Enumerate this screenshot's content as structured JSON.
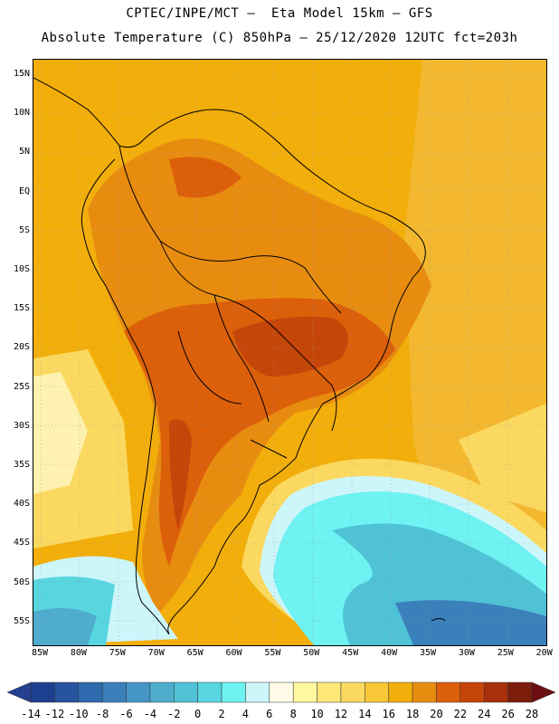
{
  "header": {
    "line1": "CPTEC/INPE/MCT –  Eta Model 15km – GFS",
    "line2": "Absolute Temperature (C) 850hPa – 25/12/2020 12UTC fct=203h"
  },
  "axes": {
    "lat_labels": [
      "15N",
      "10N",
      "5N",
      "EQ",
      "5S",
      "10S",
      "15S",
      "20S",
      "25S",
      "30S",
      "35S",
      "40S",
      "45S",
      "50S",
      "55S"
    ],
    "lon_labels": [
      "85W",
      "80W",
      "75W",
      "70W",
      "65W",
      "60W",
      "55W",
      "50W",
      "45W",
      "40W",
      "35W",
      "30W",
      "25W",
      "20W"
    ]
  },
  "colorbar": {
    "labels": [
      "-14",
      "-12",
      "-10",
      "-8",
      "-6",
      "-4",
      "-2",
      "0",
      "2",
      "4",
      "6",
      "8",
      "10",
      "12",
      "14",
      "16",
      "18",
      "20",
      "22",
      "24",
      "26",
      "28"
    ],
    "colors": [
      "#1e3f8f",
      "#26549f",
      "#2f6aae",
      "#3a80bb",
      "#4596c4",
      "#4eaccd",
      "#4fc2d6",
      "#57d6e0",
      "#6ef2f2",
      "#cdf6fb",
      "#fffbe6",
      "#fff8a0",
      "#ffe878",
      "#fbd960",
      "#f7c738",
      "#f2ae0a",
      "#e88c10",
      "#dc5f0a",
      "#c64509",
      "#a9300b",
      "#7d1d0b"
    ],
    "low_color": "#25408f",
    "high_color": "#6b0f12"
  },
  "palette": {
    "ocean_warm": "#f2ae0a",
    "land_hot": "#dc5f0a",
    "land_hottest": "#c64509"
  }
}
